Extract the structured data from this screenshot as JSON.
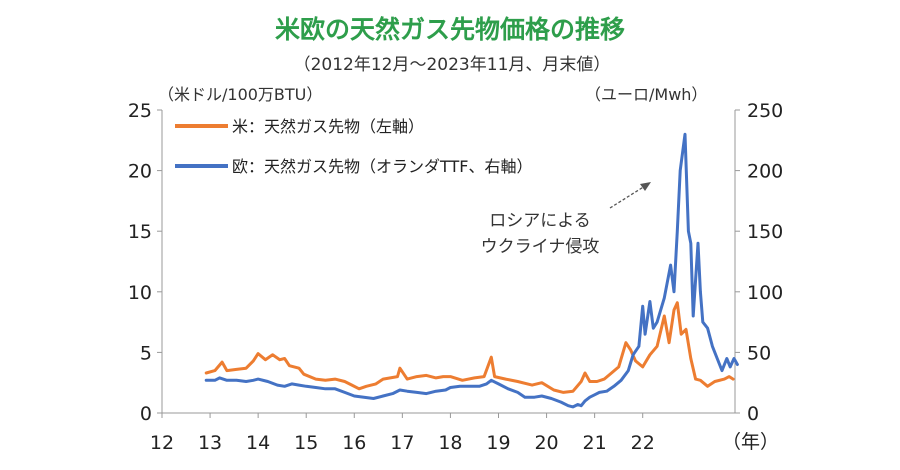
{
  "chart_data": {
    "type": "line",
    "title": "米欧の天然ガス先物価格の推移",
    "subtitle": "（2012年12月～2023年11月、月末値）",
    "y_left_label": "（米ドル/100万BTU）",
    "y_right_label": "（ユーロ/Mwh）",
    "x_unit_label": "（年）",
    "x_ticks": [
      "12",
      "13",
      "14",
      "15",
      "16",
      "17",
      "18",
      "19",
      "20",
      "21",
      "22"
    ],
    "y_left_ticks": [
      "0",
      "5",
      "10",
      "15",
      "20",
      "25"
    ],
    "y_right_ticks": [
      "0",
      "50",
      "100",
      "150",
      "200",
      "250"
    ],
    "ylim_left": [
      0,
      25
    ],
    "ylim_right": [
      0,
      250
    ],
    "grid": false,
    "legend_position": "top-left",
    "annotation": [
      "ロシアによる",
      "ウクライナ侵攻"
    ],
    "series": [
      {
        "name": "米：天然ガス先物（左軸）",
        "axis": "left",
        "color": "#ED7D31",
        "points": [
          [
            2012.92,
            3.3
          ],
          [
            2013.1,
            3.5
          ],
          [
            2013.25,
            4.2
          ],
          [
            2013.35,
            3.5
          ],
          [
            2013.55,
            3.6
          ],
          [
            2013.75,
            3.7
          ],
          [
            2013.9,
            4.3
          ],
          [
            2014.0,
            4.9
          ],
          [
            2014.15,
            4.4
          ],
          [
            2014.3,
            4.8
          ],
          [
            2014.45,
            4.4
          ],
          [
            2014.55,
            4.5
          ],
          [
            2014.65,
            3.9
          ],
          [
            2014.85,
            3.7
          ],
          [
            2014.95,
            3.2
          ],
          [
            2015.2,
            2.8
          ],
          [
            2015.4,
            2.7
          ],
          [
            2015.6,
            2.8
          ],
          [
            2015.8,
            2.6
          ],
          [
            2015.95,
            2.3
          ],
          [
            2016.1,
            2.0
          ],
          [
            2016.25,
            2.2
          ],
          [
            2016.45,
            2.4
          ],
          [
            2016.6,
            2.8
          ],
          [
            2016.75,
            2.9
          ],
          [
            2016.9,
            3.0
          ],
          [
            2016.95,
            3.7
          ],
          [
            2017.1,
            2.8
          ],
          [
            2017.3,
            3.0
          ],
          [
            2017.5,
            3.1
          ],
          [
            2017.7,
            2.9
          ],
          [
            2017.85,
            3.0
          ],
          [
            2018.0,
            3.0
          ],
          [
            2018.25,
            2.7
          ],
          [
            2018.5,
            2.9
          ],
          [
            2018.7,
            3.0
          ],
          [
            2018.85,
            4.6
          ],
          [
            2018.92,
            3.0
          ],
          [
            2019.15,
            2.8
          ],
          [
            2019.4,
            2.6
          ],
          [
            2019.7,
            2.3
          ],
          [
            2019.9,
            2.5
          ],
          [
            2020.15,
            1.9
          ],
          [
            2020.35,
            1.7
          ],
          [
            2020.55,
            1.8
          ],
          [
            2020.72,
            2.6
          ],
          [
            2020.8,
            3.3
          ],
          [
            2020.9,
            2.6
          ],
          [
            2021.05,
            2.6
          ],
          [
            2021.2,
            2.8
          ],
          [
            2021.35,
            3.3
          ],
          [
            2021.5,
            3.8
          ],
          [
            2021.65,
            5.8
          ],
          [
            2021.75,
            5.2
          ],
          [
            2021.85,
            4.3
          ],
          [
            2022.0,
            3.8
          ],
          [
            2022.15,
            4.8
          ],
          [
            2022.3,
            5.5
          ],
          [
            2022.45,
            8.0
          ],
          [
            2022.55,
            5.8
          ],
          [
            2022.65,
            8.5
          ],
          [
            2022.72,
            9.1
          ],
          [
            2022.8,
            6.5
          ],
          [
            2022.9,
            6.9
          ],
          [
            2023.0,
            4.5
          ],
          [
            2023.1,
            2.8
          ],
          [
            2023.2,
            2.7
          ],
          [
            2023.35,
            2.2
          ],
          [
            2023.5,
            2.6
          ],
          [
            2023.7,
            2.8
          ],
          [
            2023.8,
            3.0
          ],
          [
            2023.88,
            2.8
          ]
        ]
      },
      {
        "name": "欧：天然ガス先物（オランダTTF、右軸）",
        "axis": "right",
        "color": "#4472C4",
        "points": [
          [
            2012.92,
            27
          ],
          [
            2013.1,
            27
          ],
          [
            2013.2,
            29
          ],
          [
            2013.35,
            27
          ],
          [
            2013.55,
            27
          ],
          [
            2013.75,
            26
          ],
          [
            2013.9,
            27
          ],
          [
            2014.0,
            28
          ],
          [
            2014.2,
            26
          ],
          [
            2014.4,
            23
          ],
          [
            2014.55,
            22
          ],
          [
            2014.7,
            24
          ],
          [
            2014.85,
            23
          ],
          [
            2015.0,
            22
          ],
          [
            2015.2,
            21
          ],
          [
            2015.4,
            20
          ],
          [
            2015.6,
            20
          ],
          [
            2015.8,
            17
          ],
          [
            2016.0,
            14
          ],
          [
            2016.2,
            13
          ],
          [
            2016.4,
            12
          ],
          [
            2016.6,
            14
          ],
          [
            2016.8,
            16
          ],
          [
            2016.95,
            19
          ],
          [
            2017.1,
            18
          ],
          [
            2017.3,
            17
          ],
          [
            2017.5,
            16
          ],
          [
            2017.7,
            18
          ],
          [
            2017.9,
            19
          ],
          [
            2018.0,
            21
          ],
          [
            2018.2,
            22
          ],
          [
            2018.4,
            22
          ],
          [
            2018.6,
            22
          ],
          [
            2018.75,
            24
          ],
          [
            2018.85,
            27
          ],
          [
            2019.0,
            24
          ],
          [
            2019.2,
            20
          ],
          [
            2019.4,
            17
          ],
          [
            2019.55,
            13
          ],
          [
            2019.75,
            13
          ],
          [
            2019.9,
            14
          ],
          [
            2020.1,
            12
          ],
          [
            2020.3,
            9
          ],
          [
            2020.45,
            6
          ],
          [
            2020.55,
            5
          ],
          [
            2020.65,
            7
          ],
          [
            2020.72,
            6
          ],
          [
            2020.8,
            10
          ],
          [
            2020.9,
            13
          ],
          [
            2021.0,
            15
          ],
          [
            2021.1,
            17
          ],
          [
            2021.25,
            18
          ],
          [
            2021.4,
            22
          ],
          [
            2021.55,
            27
          ],
          [
            2021.7,
            35
          ],
          [
            2021.8,
            48
          ],
          [
            2021.92,
            55
          ],
          [
            2022.0,
            88
          ],
          [
            2022.05,
            65
          ],
          [
            2022.15,
            92
          ],
          [
            2022.22,
            70
          ],
          [
            2022.3,
            75
          ],
          [
            2022.45,
            95
          ],
          [
            2022.58,
            122
          ],
          [
            2022.65,
            100
          ],
          [
            2022.72,
            150
          ],
          [
            2022.78,
            200
          ],
          [
            2022.88,
            230
          ],
          [
            2022.95,
            150
          ],
          [
            2023.0,
            140
          ],
          [
            2023.05,
            80
          ],
          [
            2023.1,
            110
          ],
          [
            2023.15,
            140
          ],
          [
            2023.2,
            100
          ],
          [
            2023.25,
            75
          ],
          [
            2023.35,
            70
          ],
          [
            2023.45,
            55
          ],
          [
            2023.55,
            45
          ],
          [
            2023.65,
            35
          ],
          [
            2023.75,
            45
          ],
          [
            2023.82,
            38
          ],
          [
            2023.9,
            45
          ],
          [
            2023.97,
            40
          ]
        ]
      }
    ]
  }
}
